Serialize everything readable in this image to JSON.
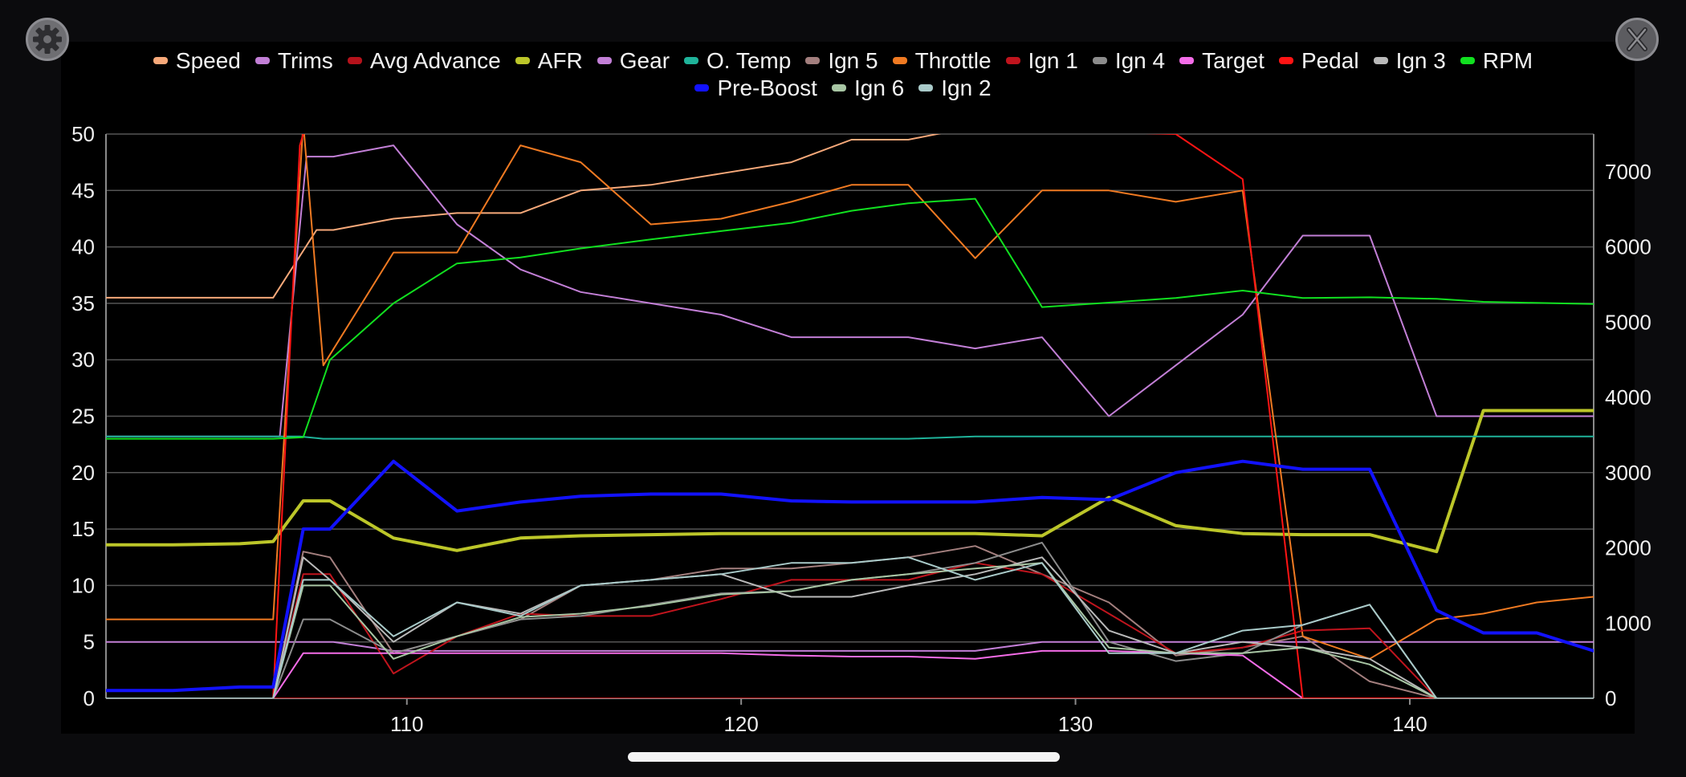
{
  "chart_data": {
    "type": "line",
    "title": "",
    "xlabel": "",
    "ylabel": "",
    "xlim": [
      101,
      145.5
    ],
    "ylim": [
      0,
      50
    ],
    "y2lim": [
      0,
      7500
    ],
    "x_ticks": [
      110,
      120,
      130,
      140
    ],
    "y_ticks": [
      0,
      5,
      10,
      15,
      20,
      25,
      30,
      35,
      40,
      45,
      50
    ],
    "y2_ticks": [
      0,
      1000,
      2000,
      3000,
      4000,
      5000,
      6000,
      7000
    ],
    "grid": true,
    "legend_position": "top",
    "series": [
      {
        "name": "Speed",
        "color": "#f7a97a",
        "width": 2,
        "x": [
          101,
          106,
          107.3,
          107.8,
          109.6,
          111.5,
          113.4,
          115.2,
          117.3,
          119.4,
          121.5,
          123.3,
          125,
          126.2,
          145.5
        ],
        "y": [
          35.5,
          35.5,
          41.5,
          41.5,
          42.5,
          43,
          43,
          45,
          45.5,
          46.5,
          47.5,
          49.5,
          49.5,
          50.2,
          50.2
        ]
      },
      {
        "name": "Trims",
        "color": "#c27fd6",
        "width": 2,
        "x": [
          101,
          106,
          106.2,
          107,
          107.8,
          109.6,
          111.5,
          113.4,
          115.2,
          117.3,
          119.4,
          121.5,
          123.3,
          125,
          127,
          129,
          131,
          133,
          135,
          136.8,
          138.8,
          140.8,
          145.5
        ],
        "y": [
          23.2,
          23.2,
          23.2,
          48,
          48,
          49,
          42,
          38,
          36,
          35,
          34,
          32,
          32,
          32,
          31,
          32,
          25,
          29.5,
          34,
          41,
          41,
          25,
          25
        ]
      },
      {
        "name": "Avg Advance",
        "color": "#b5121b",
        "width": 2,
        "x": [
          101,
          145.5
        ],
        "y": [
          0,
          0
        ]
      },
      {
        "name": "AFR",
        "color": "#bcc629",
        "width": 4,
        "x": [
          101,
          103,
          105,
          106,
          106.9,
          107.7,
          109.6,
          111.5,
          113.4,
          115.2,
          117.3,
          119.4,
          121.5,
          123.3,
          125,
          127,
          129,
          131,
          133,
          135,
          136.8,
          138.8,
          140.8,
          142.2,
          145.5
        ],
        "y": [
          13.6,
          13.6,
          13.7,
          13.9,
          17.5,
          17.5,
          14.2,
          13.1,
          14.2,
          14.4,
          14.5,
          14.6,
          14.6,
          14.6,
          14.6,
          14.6,
          14.4,
          17.8,
          15.3,
          14.6,
          14.5,
          14.5,
          13.0,
          25.5,
          25.5
        ]
      },
      {
        "name": "Gear",
        "color": "#c27fd6",
        "width": 2,
        "x": [
          101,
          106,
          107,
          107.8,
          109.6,
          111.5,
          127,
          129,
          145.5
        ],
        "y": [
          5,
          5,
          5,
          5,
          4.2,
          4.2,
          4.2,
          5,
          5
        ]
      },
      {
        "name": "O. Temp",
        "color": "#1fb39a",
        "width": 2,
        "x": [
          101,
          106.8,
          107.5,
          125,
          127,
          145.5
        ],
        "y": [
          23.2,
          23.2,
          23,
          23,
          23.2,
          23.2
        ]
      },
      {
        "name": "Ign 5",
        "color": "#a37f7e",
        "width": 2,
        "x": [
          101,
          106,
          106.9,
          107.7,
          109.6,
          111.5,
          113.4,
          115.2,
          117.3,
          119.4,
          121.5,
          123.3,
          125,
          127,
          129,
          131,
          133,
          135,
          136.8,
          138.8,
          140.8,
          145.5
        ],
        "y": [
          0,
          0,
          13,
          12.5,
          4,
          5.5,
          7,
          10,
          10.5,
          11.5,
          11.5,
          12,
          12.5,
          13.5,
          11,
          8.5,
          3.8,
          4.5,
          5.5,
          1.5,
          0,
          0
        ]
      },
      {
        "name": "Throttle",
        "color": "#f07a22",
        "width": 2,
        "x": [
          101,
          106,
          106.9,
          107.5,
          109.6,
          111.5,
          113.4,
          115.2,
          117.3,
          119.4,
          121.5,
          123.3,
          125,
          127,
          129,
          131,
          133,
          135,
          136.8,
          138.8,
          140.8,
          142.2,
          143.8,
          145.5
        ],
        "y": [
          7,
          7,
          51,
          29.5,
          39.5,
          39.5,
          49,
          47.5,
          42,
          42.5,
          44,
          45.5,
          45.5,
          39,
          45,
          45,
          44,
          45,
          5.5,
          3.5,
          7,
          7.5,
          8.5,
          9
        ]
      },
      {
        "name": "Ign 1",
        "color": "#c0141d",
        "width": 2,
        "x": [
          101,
          106,
          106.9,
          107.7,
          109.6,
          111.5,
          113.4,
          115.2,
          117.3,
          119.4,
          121.5,
          123.3,
          125,
          127,
          129,
          131,
          133,
          135,
          136.8,
          138.8,
          140.8,
          145.5
        ],
        "y": [
          0,
          0,
          11,
          11,
          2.2,
          5.5,
          7.5,
          7.3,
          7.3,
          8.8,
          10.5,
          10.5,
          10.5,
          12,
          11,
          7.5,
          4,
          4.5,
          6,
          6.2,
          0,
          0
        ]
      },
      {
        "name": "Ign 4",
        "color": "#8c8c8c",
        "width": 2,
        "x": [
          101,
          106,
          106.9,
          107.7,
          109.6,
          111.5,
          113.4,
          115.2,
          117.3,
          119.4,
          121.5,
          123.3,
          125,
          127,
          129,
          131,
          133,
          135,
          136.8,
          138.8,
          140.8,
          145.5
        ],
        "y": [
          0,
          0,
          7,
          7,
          4,
          5.5,
          7,
          7.3,
          8.3,
          9.3,
          9.5,
          10.5,
          11,
          12,
          13.8,
          5,
          3.3,
          4,
          6.5,
          8.3,
          0,
          0
        ]
      },
      {
        "name": "Target",
        "color": "#f46ce8",
        "width": 2,
        "x": [
          101,
          106,
          106.9,
          107.7,
          109.6,
          111.5,
          119.4,
          121.5,
          123.3,
          125,
          127,
          129,
          131,
          133,
          135,
          136.8,
          138.8,
          140.8,
          145.5
        ],
        "y": [
          0,
          0,
          4,
          4,
          4,
          4,
          4,
          3.8,
          3.7,
          3.7,
          3.5,
          4.2,
          4.2,
          4,
          3.8,
          0,
          0,
          0,
          0
        ]
      },
      {
        "name": "Pedal",
        "color": "#ff1414",
        "width": 2,
        "x": [
          101,
          106,
          106.8,
          107.1,
          133,
          135,
          136.8,
          145.5
        ],
        "y": [
          0,
          0,
          49,
          52,
          50,
          46,
          0,
          0
        ]
      },
      {
        "name": "Ign 3",
        "color": "#b9b9b9",
        "width": 2,
        "x": [
          101,
          106,
          106.9,
          107.7,
          109.6,
          111.5,
          113.4,
          115.2,
          117.3,
          119.4,
          121.5,
          123.3,
          125,
          127,
          129,
          131,
          133,
          135,
          136.8,
          138.8,
          140.8,
          145.5
        ],
        "y": [
          0,
          0,
          12.5,
          10.5,
          5,
          8.5,
          7.5,
          10,
          10.5,
          11,
          9,
          9,
          10,
          11,
          12.5,
          6,
          4,
          5,
          4.5,
          3.5,
          0,
          0
        ]
      },
      {
        "name": "RPM",
        "color": "#11e020",
        "width": 2,
        "axis": "right",
        "x": [
          101,
          106,
          106.9,
          107.7,
          109.6,
          111.5,
          113.4,
          115.2,
          117.3,
          119.4,
          121.5,
          123.3,
          125,
          127,
          129,
          131,
          133,
          135,
          136.8,
          138.8,
          140.8,
          142.2,
          145.5
        ],
        "y": [
          3450,
          3450,
          3470,
          4500,
          5250,
          5780,
          5860,
          5980,
          6100,
          6210,
          6320,
          6480,
          6580,
          6640,
          5200,
          5260,
          5320,
          5420,
          5320,
          5330,
          5310,
          5270,
          5240
        ]
      },
      {
        "name": "Pre-Boost",
        "color": "#1212ff",
        "width": 4,
        "x": [
          101,
          103,
          105,
          106,
          106.9,
          107.7,
          109.6,
          111.5,
          113.4,
          115.2,
          117.3,
          119.4,
          121.5,
          123.3,
          125,
          127,
          129,
          131,
          133,
          135,
          136.8,
          138.8,
          140.8,
          142.2,
          143.8,
          145.5
        ],
        "y": [
          0.7,
          0.7,
          1,
          1,
          15,
          15,
          21,
          16.6,
          17.4,
          17.9,
          18.1,
          18.1,
          17.5,
          17.4,
          17.4,
          17.4,
          17.8,
          17.6,
          20,
          21,
          20.3,
          20.3,
          7.8,
          5.8,
          5.8,
          4.2
        ]
      },
      {
        "name": "Ign 6",
        "color": "#a8c6a4",
        "width": 2,
        "x": [
          101,
          106,
          106.9,
          107.7,
          109.6,
          111.5,
          113.4,
          115.2,
          117.3,
          119.4,
          121.5,
          123.3,
          125,
          127,
          129,
          131,
          133,
          135,
          136.8,
          138.8,
          140.8,
          145.5
        ],
        "y": [
          0,
          0,
          10,
          10,
          3.5,
          5.5,
          7.2,
          7.5,
          8.2,
          9.2,
          9.5,
          10.5,
          11,
          11.5,
          12,
          4.5,
          4,
          4,
          4.5,
          3,
          0,
          0
        ]
      },
      {
        "name": "Ign 2",
        "color": "#a9cac9",
        "width": 2,
        "x": [
          101,
          106,
          106.9,
          107.7,
          109.6,
          111.5,
          113.4,
          115.2,
          117.3,
          119.4,
          121.5,
          123.3,
          125,
          127,
          129,
          131,
          133,
          135,
          136.8,
          138.8,
          140.8,
          145.5
        ],
        "y": [
          0,
          0,
          10.5,
          10.5,
          5.5,
          8.5,
          7.3,
          10,
          10.5,
          11,
          12,
          12,
          12.5,
          10.5,
          12,
          4,
          4,
          6,
          6.5,
          8.3,
          0,
          0
        ]
      }
    ]
  },
  "legend": {
    "row1": [
      0,
      1,
      2,
      3,
      4,
      5,
      6,
      7,
      8,
      9,
      10,
      11,
      12,
      13
    ],
    "row2": [
      14,
      15,
      16
    ]
  },
  "icons": {
    "settings": "gear-icon",
    "close": "close-icon"
  }
}
